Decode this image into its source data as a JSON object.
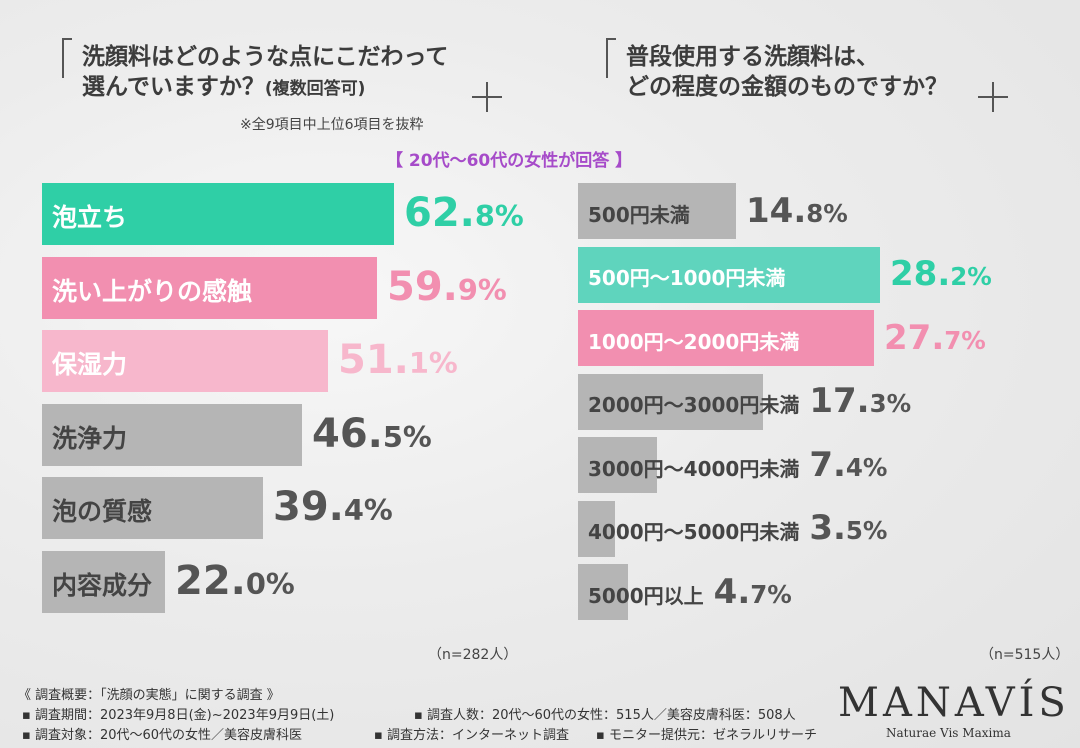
{
  "left": {
    "title_line1": "洗顔料はどのような点にこだわって",
    "title_line2": "選んでいますか？",
    "title_suffix": "(複数回答可)",
    "note": "※全9項目中上位6項目を抜粋",
    "n_label": "（n=282人）"
  },
  "right": {
    "title_line1": "普段使用する洗顔料は、",
    "title_line2": "どの程度の金額のものですか？",
    "n_label": "（n=515人）"
  },
  "subtitle": "【 20代〜60代の女性が回答 】",
  "chart_data": [
    {
      "type": "bar",
      "orientation": "horizontal",
      "title": "洗顔料はどのような点にこだわって選んでいますか？(複数回答可)",
      "categories": [
        "泡立ち",
        "洗い上がりの感触",
        "保湿力",
        "洗浄力",
        "泡の質感",
        "内容成分"
      ],
      "values": [
        62.8,
        59.9,
        51.1,
        46.5,
        39.4,
        22.0
      ],
      "value_labels": [
        [
          "62.8",
          "%"
        ],
        [
          "59.9",
          "%"
        ],
        [
          "51.1",
          "%"
        ],
        [
          "46.5",
          "%"
        ],
        [
          "39.4",
          "%"
        ],
        [
          "22.0",
          "%"
        ]
      ],
      "colors": [
        "#2fcfa6",
        "#f28fb0",
        "#f7b7cc",
        "#b5b5b5",
        "#b5b5b5",
        "#b5b5b5"
      ],
      "label_colors": [
        "#ffffff",
        "#ffffff",
        "#ffffff",
        "#444444",
        "#444444",
        "#444444"
      ],
      "value_colors": [
        "#2fcfa6",
        "#f28fb0",
        "#f7b7cc",
        "#555555",
        "#555555",
        "#555555"
      ],
      "unit": "%"
    },
    {
      "type": "bar",
      "orientation": "horizontal",
      "title": "普段使用する洗顔料は、どの程度の金額のものですか？",
      "categories": [
        "500円未満",
        "500円〜1000円未満",
        "1000円〜2000円未満",
        "2000円〜3000円未満",
        "3000円〜4000円未満",
        "4000円〜5000円未満",
        "5000円以上"
      ],
      "values": [
        14.8,
        28.2,
        27.7,
        17.3,
        7.4,
        3.5,
        4.7
      ],
      "value_labels": [
        [
          "14.8",
          "%"
        ],
        [
          "28.2",
          "%"
        ],
        [
          "27.7",
          "%"
        ],
        [
          "17.3",
          "%"
        ],
        [
          "7.4",
          "%"
        ],
        [
          "3.5",
          "%"
        ],
        [
          "4.7",
          "%"
        ]
      ],
      "colors": [
        "#b5b5b5",
        "#5fd4bd",
        "#f28fb0",
        "#b5b5b5",
        "#b5b5b5",
        "#b5b5b5",
        "#b5b5b5"
      ],
      "label_colors": [
        "#444444",
        "#ffffff",
        "#ffffff",
        "#444444",
        "#444444",
        "#444444",
        "#444444"
      ],
      "value_colors": [
        "#555555",
        "#2fcfa6",
        "#f28fb0",
        "#555555",
        "#555555",
        "#555555",
        "#555555"
      ],
      "unit": "%"
    }
  ],
  "footer": {
    "heading": "《 調査概要：「洗顔の実態」に関する調査 》",
    "period": "▪ 調査期間：2023年9月8日(金)~2023年9月9日(土)",
    "target": "▪ 調査対象：20代〜60代の女性／美容皮膚科医",
    "count": "▪ 調査人数：20代〜60代の女性：515人／美容皮膚科医：508人",
    "method": "▪ 調査方法：インターネット調査",
    "provider": "▪ モニター提供元：ゼネラルリサーチ"
  },
  "brand": {
    "logo": "MANAVÍS",
    "tagline": "Naturae Vis Maxima"
  }
}
